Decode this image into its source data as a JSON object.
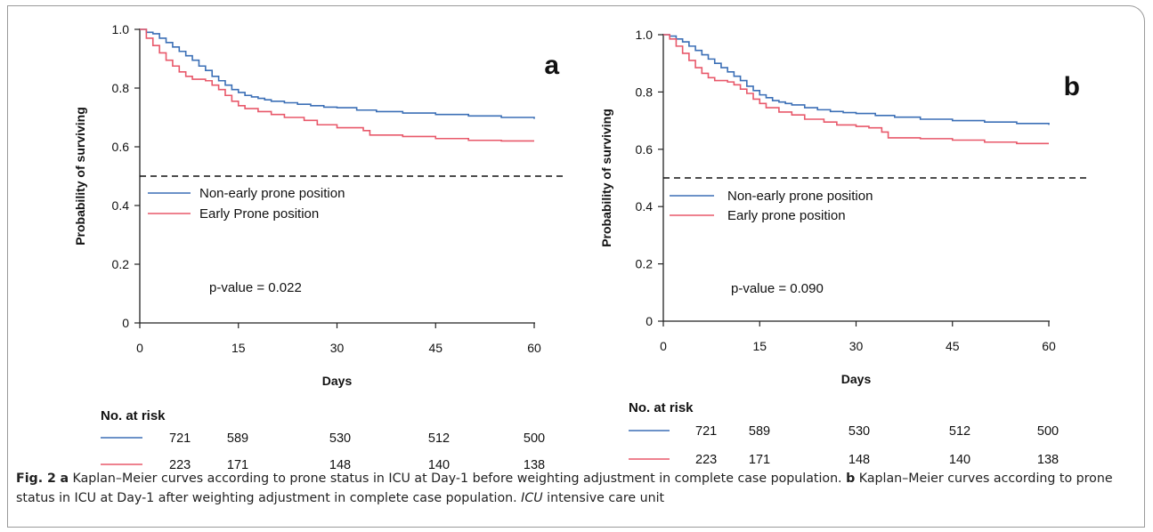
{
  "chart_data": [
    {
      "type": "line",
      "panel_label": "a",
      "xlabel": "Days",
      "ylabel": "Probability of surviving",
      "xlim": [
        0,
        60
      ],
      "ylim": [
        0,
        1
      ],
      "xticks": [
        "0",
        "15",
        "30",
        "45",
        "60"
      ],
      "yticks": [
        "0",
        "0.2",
        "0.4",
        "0.6",
        "0.8",
        "1.0"
      ],
      "reference_line": 0.5,
      "pvalue_text": "p-value = 0.022",
      "legend_position": "center-left",
      "series": [
        {
          "name": "Non-early prone position",
          "color": "#3b6fb6",
          "x": [
            0,
            1,
            2,
            3,
            4,
            5,
            6,
            7,
            8,
            9,
            10,
            11,
            12,
            13,
            14,
            15,
            16,
            17,
            18,
            19,
            20,
            22,
            24,
            26,
            28,
            30,
            33,
            36,
            40,
            45,
            50,
            55,
            60
          ],
          "y": [
            1.0,
            0.99,
            0.985,
            0.97,
            0.955,
            0.94,
            0.925,
            0.91,
            0.895,
            0.875,
            0.86,
            0.84,
            0.825,
            0.81,
            0.795,
            0.785,
            0.775,
            0.77,
            0.765,
            0.76,
            0.755,
            0.75,
            0.745,
            0.74,
            0.735,
            0.733,
            0.725,
            0.72,
            0.715,
            0.71,
            0.705,
            0.7,
            0.695
          ]
        },
        {
          "name": "Early Prone position",
          "color": "#e8586a",
          "x": [
            0,
            1,
            2,
            3,
            4,
            5,
            6,
            7,
            8,
            10,
            11,
            12,
            13,
            14,
            15,
            16,
            18,
            20,
            22,
            25,
            27,
            30,
            32,
            34,
            35,
            40,
            45,
            50,
            55,
            60
          ],
          "y": [
            1.0,
            0.97,
            0.945,
            0.92,
            0.895,
            0.875,
            0.855,
            0.84,
            0.83,
            0.825,
            0.81,
            0.795,
            0.775,
            0.755,
            0.74,
            0.73,
            0.72,
            0.71,
            0.7,
            0.69,
            0.675,
            0.665,
            0.665,
            0.655,
            0.64,
            0.635,
            0.628,
            0.622,
            0.62,
            0.62
          ]
        }
      ],
      "risk_table": {
        "title": "No. at risk",
        "rows": [
          {
            "color": "#3b6fb6",
            "values": [
              "721",
              "589",
              "530",
              "512",
              "500"
            ]
          },
          {
            "color": "#e8586a",
            "values": [
              "223",
              "171",
              "148",
              "140",
              "138"
            ]
          }
        ]
      }
    },
    {
      "type": "line",
      "panel_label": "b",
      "xlabel": "Days",
      "ylabel": "Probability of surviving",
      "xlim": [
        0,
        60
      ],
      "ylim": [
        0,
        1
      ],
      "xticks": [
        "0",
        "15",
        "30",
        "45",
        "60"
      ],
      "yticks": [
        "0",
        "0.2",
        "0.4",
        "0.6",
        "0.8",
        "1.0"
      ],
      "reference_line": 0.5,
      "pvalue_text": "p-value = 0.090",
      "legend_position": "center-left",
      "series": [
        {
          "name": "Non-early prone position",
          "color": "#3b6fb6",
          "x": [
            0,
            1,
            2,
            3,
            4,
            5,
            6,
            7,
            8,
            9,
            10,
            11,
            12,
            13,
            14,
            15,
            16,
            17,
            18,
            19,
            20,
            22,
            24,
            26,
            28,
            30,
            33,
            36,
            40,
            45,
            50,
            55,
            60
          ],
          "y": [
            1.0,
            0.995,
            0.985,
            0.975,
            0.96,
            0.945,
            0.93,
            0.915,
            0.9,
            0.885,
            0.87,
            0.855,
            0.84,
            0.82,
            0.805,
            0.79,
            0.78,
            0.77,
            0.765,
            0.76,
            0.755,
            0.745,
            0.738,
            0.732,
            0.728,
            0.725,
            0.718,
            0.712,
            0.705,
            0.7,
            0.695,
            0.69,
            0.685
          ]
        },
        {
          "name": "Early prone position",
          "color": "#e8586a",
          "x": [
            0,
            1,
            2,
            3,
            4,
            5,
            6,
            7,
            8,
            10,
            11,
            12,
            13,
            14,
            15,
            16,
            18,
            20,
            22,
            25,
            27,
            30,
            32,
            34,
            35,
            40,
            45,
            50,
            55,
            60
          ],
          "y": [
            1.0,
            0.985,
            0.96,
            0.935,
            0.91,
            0.885,
            0.865,
            0.85,
            0.84,
            0.835,
            0.825,
            0.81,
            0.795,
            0.775,
            0.76,
            0.745,
            0.73,
            0.72,
            0.705,
            0.695,
            0.685,
            0.68,
            0.675,
            0.66,
            0.64,
            0.637,
            0.632,
            0.625,
            0.62,
            0.62
          ]
        }
      ],
      "risk_table": {
        "title": "No. at risk",
        "rows": [
          {
            "color": "#3b6fb6",
            "values": [
              "721",
              "589",
              "530",
              "512",
              "500"
            ]
          },
          {
            "color": "#e8586a",
            "values": [
              "223",
              "171",
              "148",
              "140",
              "138"
            ]
          }
        ]
      }
    }
  ],
  "caption": {
    "fig_label": "Fig. 2",
    "a_label": "a",
    "a_text": "Kaplan–Meier curves according to prone status in ICU at Day-1 before weighting adjustment in complete case population.",
    "b_label": "b",
    "b_text": "Kaplan–Meier curves according to prone status in ICU at Day-1 after weighting adjustment in complete case population.",
    "abbr": "ICU",
    "abbr_text": "intensive care unit"
  }
}
